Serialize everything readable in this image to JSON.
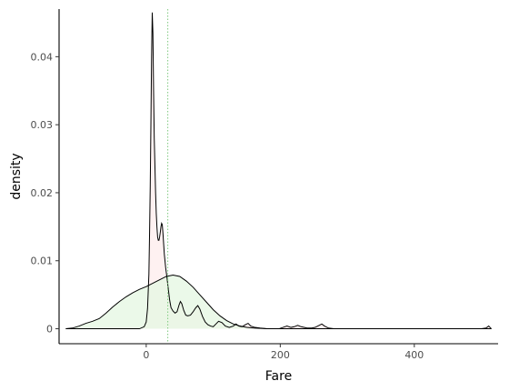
{
  "chart_data": {
    "type": "area",
    "xlabel": "Fare",
    "ylabel": "density",
    "xlim": [
      -130,
      525
    ],
    "ylim": [
      -0.0022,
      0.047
    ],
    "x_ticks": [
      0,
      200,
      400
    ],
    "x_tick_labels": [
      "0",
      "200",
      "400"
    ],
    "y_ticks": [
      0,
      0.01,
      0.02,
      0.03,
      0.04
    ],
    "y_tick_labels": [
      "0",
      "0.01",
      "0.02",
      "0.03",
      "0.04"
    ],
    "grid": false,
    "legend": "none",
    "reference_line": {
      "x": 32.2,
      "color": "#7fc97f",
      "style": "dotted"
    },
    "series": [
      {
        "fill": "#fdecec",
        "stroke": "#000000",
        "points": [
          [
            -120,
            0
          ],
          [
            -10,
            0
          ],
          [
            -3,
            0.0003
          ],
          [
            0,
            0.001
          ],
          [
            2,
            0.003
          ],
          [
            4,
            0.008
          ],
          [
            5,
            0.014
          ],
          [
            6,
            0.021
          ],
          [
            7,
            0.03
          ],
          [
            8,
            0.04
          ],
          [
            9,
            0.0465
          ],
          [
            10,
            0.0435
          ],
          [
            11,
            0.035
          ],
          [
            12,
            0.028
          ],
          [
            13,
            0.024
          ],
          [
            14,
            0.02
          ],
          [
            15,
            0.017
          ],
          [
            16,
            0.015
          ],
          [
            17,
            0.0135
          ],
          [
            18,
            0.013
          ],
          [
            19,
            0.013
          ],
          [
            20,
            0.0135
          ],
          [
            21,
            0.0142
          ],
          [
            22,
            0.015
          ],
          [
            23,
            0.0155
          ],
          [
            24,
            0.0153
          ],
          [
            25,
            0.014
          ],
          [
            27,
            0.011
          ],
          [
            29,
            0.009
          ],
          [
            31,
            0.0075
          ],
          [
            33,
            0.0058
          ],
          [
            35,
            0.0042
          ],
          [
            37,
            0.0031
          ],
          [
            40,
            0.0026
          ],
          [
            43,
            0.0023
          ],
          [
            46,
            0.0025
          ],
          [
            49,
            0.0035
          ],
          [
            51,
            0.004
          ],
          [
            53,
            0.0037
          ],
          [
            56,
            0.0027
          ],
          [
            59,
            0.002
          ],
          [
            62,
            0.0019
          ],
          [
            66,
            0.002
          ],
          [
            70,
            0.0025
          ],
          [
            74,
            0.0031
          ],
          [
            77,
            0.0034
          ],
          [
            80,
            0.0029
          ],
          [
            84,
            0.0018
          ],
          [
            88,
            0.001
          ],
          [
            92,
            0.0006
          ],
          [
            96,
            0.0004
          ],
          [
            100,
            0.0003
          ],
          [
            104,
            0.0007
          ],
          [
            108,
            0.0011
          ],
          [
            113,
            0.0009
          ],
          [
            118,
            0.0004
          ],
          [
            124,
            0.0002
          ],
          [
            130,
            0.0004
          ],
          [
            134,
            0.0007
          ],
          [
            138,
            0.0004
          ],
          [
            143,
            0.0003
          ],
          [
            148,
            0.0006
          ],
          [
            152,
            0.0008
          ],
          [
            156,
            0.0004
          ],
          [
            162,
            0.0002
          ],
          [
            170,
            0.0001
          ],
          [
            180,
            0
          ],
          [
            198,
            0
          ],
          [
            204,
            0.0002
          ],
          [
            210,
            0.0004
          ],
          [
            216,
            0.0002
          ],
          [
            221,
            0.0003
          ],
          [
            226,
            0.0005
          ],
          [
            231,
            0.0003
          ],
          [
            240,
            0.0001
          ],
          [
            247,
            0.0001
          ],
          [
            252,
            0.0002
          ],
          [
            258,
            0.0005
          ],
          [
            262,
            0.0007
          ],
          [
            266,
            0.0004
          ],
          [
            272,
            0.0001
          ],
          [
            280,
            0
          ],
          [
            500,
            0
          ],
          [
            507,
            0.0001
          ],
          [
            511,
            0.0004
          ],
          [
            513,
            0.0002
          ],
          [
            515,
            0
          ]
        ]
      },
      {
        "fill": "#e4f7e2",
        "stroke": "#000000",
        "points": [
          [
            -120,
            0
          ],
          [
            -110,
            0.0001
          ],
          [
            -100,
            0.0004
          ],
          [
            -90,
            0.0008
          ],
          [
            -80,
            0.0011
          ],
          [
            -70,
            0.0015
          ],
          [
            -60,
            0.0023
          ],
          [
            -50,
            0.0032
          ],
          [
            -40,
            0.004
          ],
          [
            -30,
            0.0047
          ],
          [
            -20,
            0.0053
          ],
          [
            -10,
            0.0058
          ],
          [
            0,
            0.0062
          ],
          [
            10,
            0.0067
          ],
          [
            20,
            0.0072
          ],
          [
            30,
            0.0077
          ],
          [
            40,
            0.0079
          ],
          [
            50,
            0.0077
          ],
          [
            60,
            0.007
          ],
          [
            70,
            0.0061
          ],
          [
            80,
            0.005
          ],
          [
            90,
            0.0039
          ],
          [
            100,
            0.0028
          ],
          [
            110,
            0.0019
          ],
          [
            120,
            0.0012
          ],
          [
            130,
            0.0007
          ],
          [
            140,
            0.0004
          ],
          [
            150,
            0.0002
          ],
          [
            160,
            0.0001
          ],
          [
            180,
            0
          ],
          [
            515,
            0
          ]
        ]
      }
    ]
  }
}
